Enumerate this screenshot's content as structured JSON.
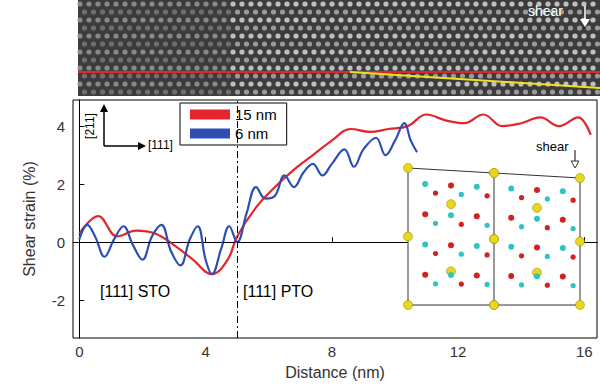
{
  "chart_data": {
    "type": "line",
    "x_label": "Distance (nm)",
    "y_label": "Shear strain (%)",
    "xlim": [
      -0.2,
      16.4
    ],
    "xticks": [
      0,
      4,
      8,
      12,
      16
    ],
    "ylim": [
      -3.3,
      4.9
    ],
    "yticks": [
      -2,
      0,
      2,
      4
    ],
    "grid": false,
    "legend": "upper left",
    "reference_lines": {
      "x": 5,
      "y": 0
    },
    "annotations": [
      "[111] STO",
      "[111] PTO"
    ],
    "image_label": "shear",
    "inset_label": "shear",
    "direction_labels": {
      "vertical": "[211]",
      "horizontal": "[111]"
    },
    "series": [
      {
        "name": "15 nm",
        "color": "#e3262b",
        "line_style": "solid",
        "x": [
          0,
          0.6,
          1.2,
          1.8,
          2.4,
          3.0,
          3.6,
          4.2,
          4.7,
          5.0,
          5.6,
          6.2,
          6.8,
          7.4,
          8.0,
          8.6,
          9.2,
          9.8,
          10.4,
          11.0,
          11.6,
          12.2,
          12.8,
          13.4,
          14.0,
          14.6,
          15.2,
          15.8,
          16.2
        ],
        "values": [
          0.3,
          0.9,
          0.2,
          0.4,
          0.3,
          -0.1,
          -0.6,
          -1.1,
          -0.6,
          0.2,
          1.2,
          1.9,
          2.5,
          3.0,
          3.5,
          3.9,
          3.8,
          3.9,
          4.0,
          4.4,
          4.2,
          4.1,
          4.4,
          4.0,
          4.1,
          4.3,
          4.0,
          4.3,
          3.7
        ]
      },
      {
        "name": "6 nm",
        "color": "#2d4fb4",
        "line_style": "solid",
        "x": [
          0,
          0.25,
          0.5,
          0.8,
          1.1,
          1.4,
          1.7,
          2.0,
          2.3,
          2.6,
          2.9,
          3.2,
          3.5,
          3.75,
          4.0,
          4.2,
          4.5,
          4.75,
          5.0,
          5.3,
          5.6,
          5.9,
          6.2,
          6.5,
          6.8,
          7.1,
          7.4,
          7.7,
          8.0,
          8.4,
          8.7,
          9.0,
          9.4,
          9.7,
          10.0,
          10.3,
          10.5,
          10.7
        ],
        "values": [
          0.1,
          0.6,
          0.2,
          -0.5,
          0.1,
          0.55,
          -0.1,
          -0.6,
          0.2,
          0.6,
          -0.3,
          -0.8,
          0.1,
          0.55,
          -0.6,
          -1.1,
          -0.2,
          0.55,
          0.0,
          1.0,
          1.9,
          1.5,
          1.6,
          2.3,
          1.9,
          2.4,
          2.7,
          2.3,
          2.7,
          3.2,
          2.6,
          3.2,
          3.6,
          3.0,
          3.5,
          4.1,
          3.5,
          3.1
        ]
      }
    ]
  }
}
